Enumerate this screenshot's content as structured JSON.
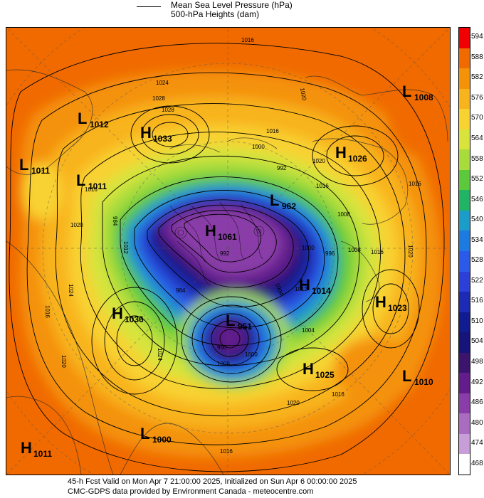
{
  "legend": {
    "line1": "Mean Sea Level Pressure (hPa)",
    "line2": "500-hPa Heights (dam)"
  },
  "colorbar": {
    "levels": [
      "594",
      "588",
      "582",
      "576",
      "570",
      "564",
      "558",
      "552",
      "546",
      "540",
      "534",
      "528",
      "522",
      "516",
      "510",
      "504",
      "498",
      "492",
      "486",
      "480",
      "474",
      "468"
    ],
    "colors": [
      "#f00000",
      "#f06a00",
      "#f49208",
      "#f8b41c",
      "#f8d230",
      "#d8e43c",
      "#a8dc3c",
      "#5cc83c",
      "#20b464",
      "#1c9cc8",
      "#1c7ae0",
      "#2c5ae8",
      "#2c40d8",
      "#1c2ab4",
      "#101c90",
      "#14147a",
      "#3c146e",
      "#621c8c",
      "#8a3ca8",
      "#aa6cc0",
      "#c89ed8",
      "#ffffff"
    ]
  },
  "map": {
    "pressure_centers": [
      {
        "type": "L",
        "value": "1012"
      },
      {
        "type": "H",
        "value": "1033"
      },
      {
        "type": "L",
        "value": "1011"
      },
      {
        "type": "L",
        "value": "1011"
      },
      {
        "type": "L",
        "value": "1008"
      },
      {
        "type": "H",
        "value": "1026"
      },
      {
        "type": "L",
        "value": "962"
      },
      {
        "type": "H",
        "value": "1061"
      },
      {
        "type": "H",
        "value": "1014"
      },
      {
        "type": "H",
        "value": "1023"
      },
      {
        "type": "H",
        "value": "1036"
      },
      {
        "type": "L",
        "value": "951"
      },
      {
        "type": "H",
        "value": "1025"
      },
      {
        "type": "L",
        "value": "1010"
      },
      {
        "type": "L",
        "value": "1000"
      },
      {
        "type": "H",
        "value": "1011"
      }
    ],
    "isobar_labels": [
      "1016",
      "1024",
      "1028",
      "1020",
      "1000",
      "1016",
      "992",
      "1020",
      "1016",
      "1008",
      "996",
      "1008",
      "1016",
      "1000",
      "1028",
      "1012",
      "1020",
      "984",
      "1016",
      "1024",
      "1016",
      "1004",
      "1008",
      "1020",
      "1016",
      "1024",
      "1020",
      "984",
      "992",
      "960",
      "1000",
      "1016",
      "1020",
      "1016",
      "1004",
      "1012"
    ]
  },
  "footer": {
    "line1": "45-h Fcst Valid on Mon Apr  7 21:00:00 2025, Initialized on Sun Apr  6 00:00:00 2025",
    "line2": "CMC-GDPS data provided by Environment Canada - meteocentre.com"
  }
}
